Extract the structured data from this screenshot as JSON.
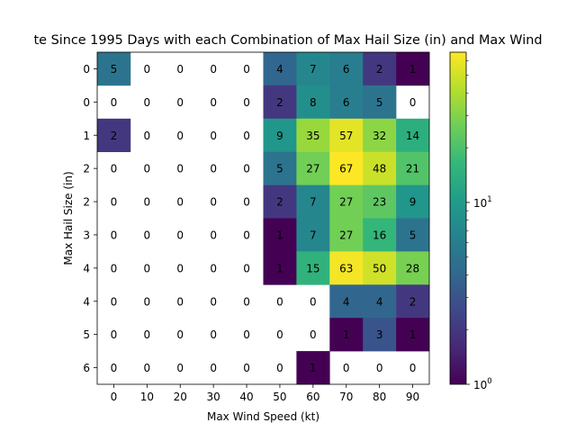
{
  "chart_data": {
    "type": "heatmap",
    "title": "te Since 1995 Days with each Combination of Max Hail Size (in) and Max Wind",
    "xlabel": "Max Wind Speed (kt)",
    "ylabel": "Max Hail Size (in)",
    "x_categories": [
      "0",
      "10",
      "20",
      "30",
      "40",
      "50",
      "60",
      "70",
      "80",
      "90"
    ],
    "y_categories": [
      "0",
      "0",
      "1",
      "2",
      "2",
      "3",
      "4",
      "4",
      "5",
      "6"
    ],
    "values": [
      [
        5,
        0,
        0,
        0,
        0,
        4,
        7,
        6,
        2,
        1
      ],
      [
        0,
        0,
        0,
        0,
        0,
        2,
        8,
        6,
        5,
        0
      ],
      [
        2,
        0,
        0,
        0,
        0,
        9,
        35,
        57,
        32,
        14
      ],
      [
        0,
        0,
        0,
        0,
        0,
        5,
        27,
        67,
        48,
        21
      ],
      [
        0,
        0,
        0,
        0,
        0,
        2,
        7,
        27,
        23,
        9
      ],
      [
        0,
        0,
        0,
        0,
        0,
        1,
        7,
        27,
        16,
        5
      ],
      [
        0,
        0,
        0,
        0,
        0,
        1,
        15,
        63,
        50,
        28
      ],
      [
        0,
        0,
        0,
        0,
        0,
        0,
        0,
        4,
        4,
        2
      ],
      [
        0,
        0,
        0,
        0,
        0,
        0,
        0,
        1,
        3,
        1
      ],
      [
        0,
        0,
        0,
        0,
        0,
        0,
        1,
        0,
        0,
        0
      ]
    ],
    "color_scale": "log",
    "colormap": "viridis",
    "colorbar_range": [
      1,
      67
    ],
    "colorbar_ticks": [
      {
        "value": 10,
        "base": "10",
        "exp": "1"
      },
      {
        "value": 1,
        "base": "10",
        "exp": "0"
      }
    ],
    "zero_cells": "blank",
    "grid": false,
    "colors": {
      "viridis_stops": [
        "#440154",
        "#482878",
        "#3e4989",
        "#31688e",
        "#26828e",
        "#1f9e89",
        "#35b779",
        "#6ece58",
        "#b5de2b",
        "#fde725"
      ]
    }
  }
}
